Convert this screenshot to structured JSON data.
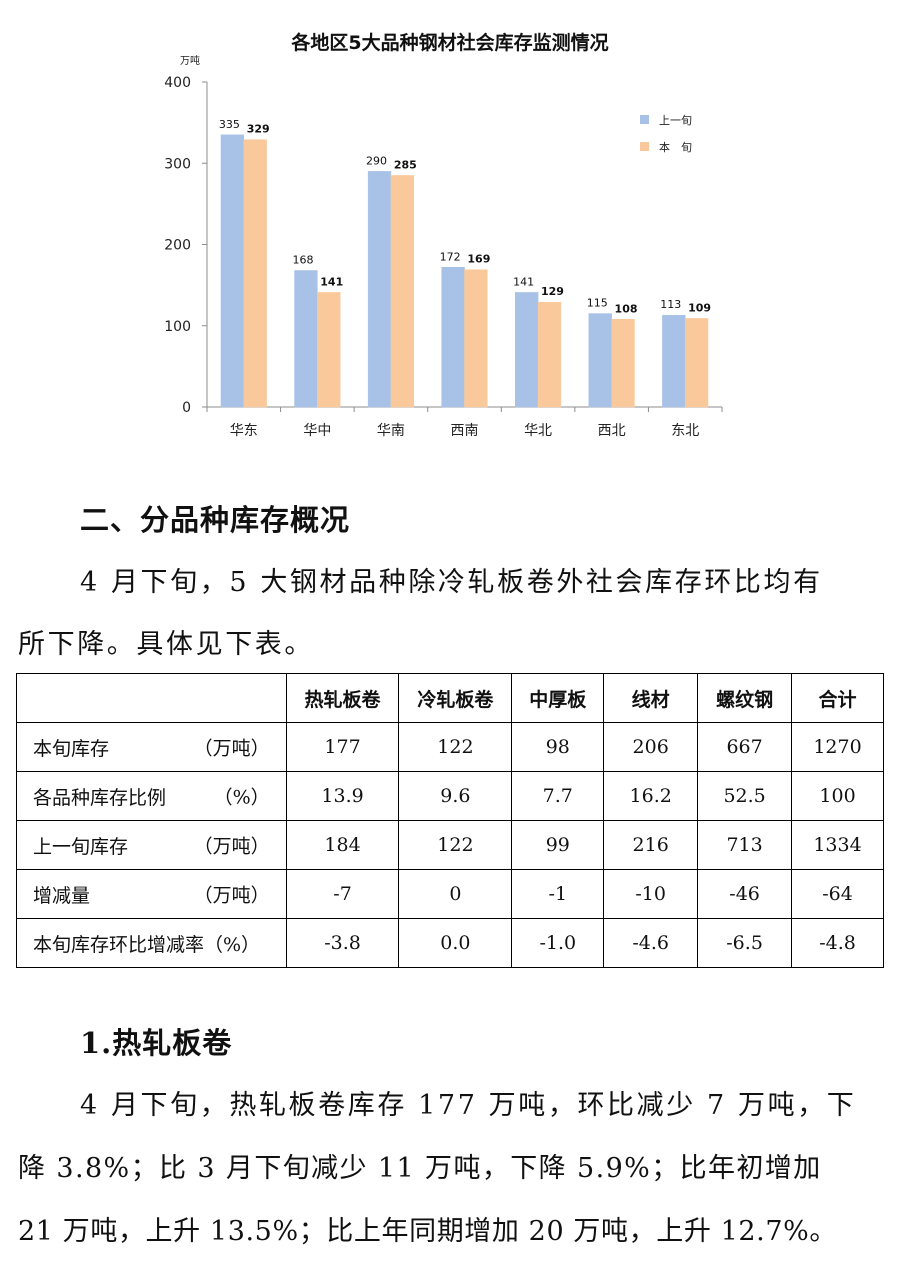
{
  "chart_data": {
    "type": "bar",
    "title": "各地区5大品种钢材社会库存监测情况",
    "ylabel": "万吨",
    "categories": [
      "华东",
      "华中",
      "华南",
      "西南",
      "华北",
      "西北",
      "东北"
    ],
    "series": [
      {
        "name": "上一旬",
        "values": [
          335,
          168,
          290,
          172,
          141,
          115,
          113
        ],
        "color": "#A7C2E6"
      },
      {
        "name": "本　旬",
        "values": [
          329,
          141,
          285,
          169,
          129,
          108,
          109
        ],
        "color": "#FAC99B"
      }
    ],
    "ylim": [
      0,
      400
    ],
    "yticks": [
      0,
      100,
      200,
      300,
      400
    ],
    "legend": "top-right",
    "grid": false
  },
  "section2": {
    "heading": "二、分品种库存概况",
    "para_lines": [
      "4 月下旬，5 大钢材品种除冷轧板卷外社会库存环比均有",
      "所下降。具体见下表。"
    ]
  },
  "table": {
    "headers": [
      "",
      "热轧板卷",
      "冷轧板卷",
      "中厚板",
      "线材",
      "螺纹钢",
      "合计"
    ],
    "rows": [
      {
        "label": "本旬库存",
        "unit": "（万吨）",
        "values": [
          "177",
          "122",
          "98",
          "206",
          "667",
          "1270"
        ]
      },
      {
        "label": "各品种库存比例",
        "unit": "（%）",
        "values": [
          "13.9",
          "9.6",
          "7.7",
          "16.2",
          "52.5",
          "100"
        ]
      },
      {
        "label": "上一旬库存",
        "unit": "（万吨）",
        "values": [
          "184",
          "122",
          "99",
          "216",
          "713",
          "1334"
        ]
      },
      {
        "label": "增减量",
        "unit": "（万吨）",
        "values": [
          "-7",
          "0",
          "-1",
          "-10",
          "-46",
          "-64"
        ]
      },
      {
        "label": "本旬库存环比增减率（%）",
        "unit": "",
        "values": [
          "-3.8",
          "0.0",
          "-1.0",
          "-4.6",
          "-6.5",
          "-4.8"
        ]
      }
    ]
  },
  "section_hot": {
    "heading": "1.热轧板卷",
    "para_lines": [
      "4 月下旬，热轧板卷库存 177 万吨，环比减少 7 万吨，下",
      "降 3.8%；比 3 月下旬减少 11 万吨，下降 5.9%；比年初增加",
      "21 万吨，上升 13.5%；比上年同期增加 20 万吨，上升 12.7%。"
    ]
  }
}
